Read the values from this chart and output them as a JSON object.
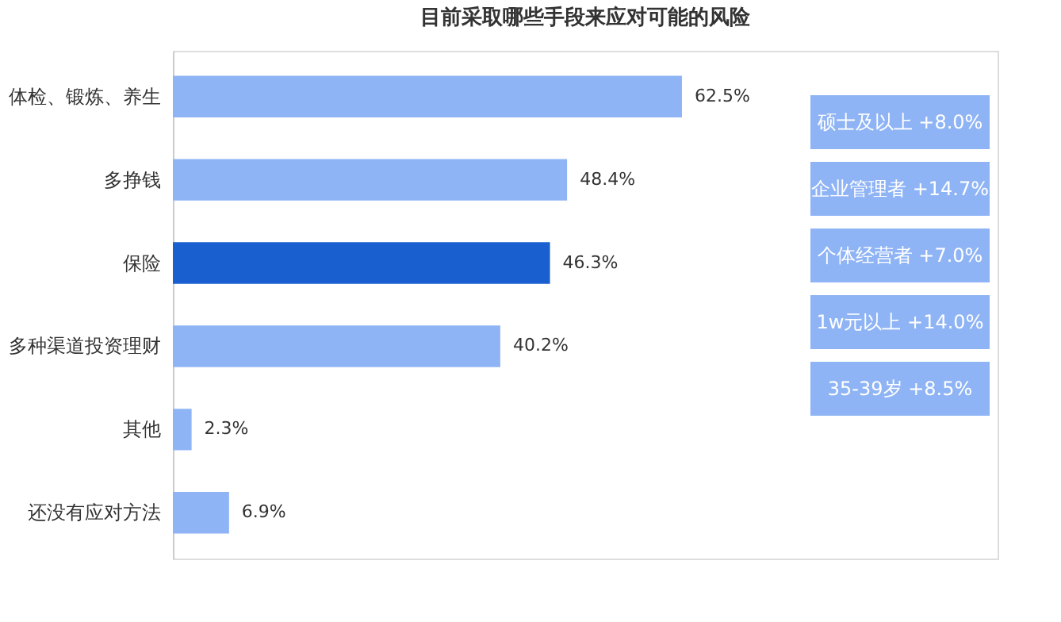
{
  "chart_data": {
    "type": "bar",
    "orientation": "horizontal",
    "title": "目前采取哪些手段来应对可能的风险",
    "categories": [
      "体检、锻炼、养生",
      "多挣钱",
      "保险",
      "多种渠道投资理财",
      "其他",
      "还没有应对方法"
    ],
    "values": [
      62.5,
      48.4,
      46.3,
      40.2,
      2.3,
      6.9
    ],
    "value_labels": [
      "62.5%",
      "48.4%",
      "46.3%",
      "40.2%",
      "2.3%",
      "6.9%"
    ],
    "colors": [
      "#8fb4f5",
      "#8fb4f5",
      "#1a5fd0",
      "#8fb4f5",
      "#8fb4f5",
      "#8fb4f5"
    ],
    "annotations": [
      "硕士及以上 +8.0%",
      "企业管理者 +14.7%",
      "个体经营者 +7.0%",
      "1w元以上 +14.0%",
      "35-39岁 +8.5%"
    ],
    "grid": false
  }
}
